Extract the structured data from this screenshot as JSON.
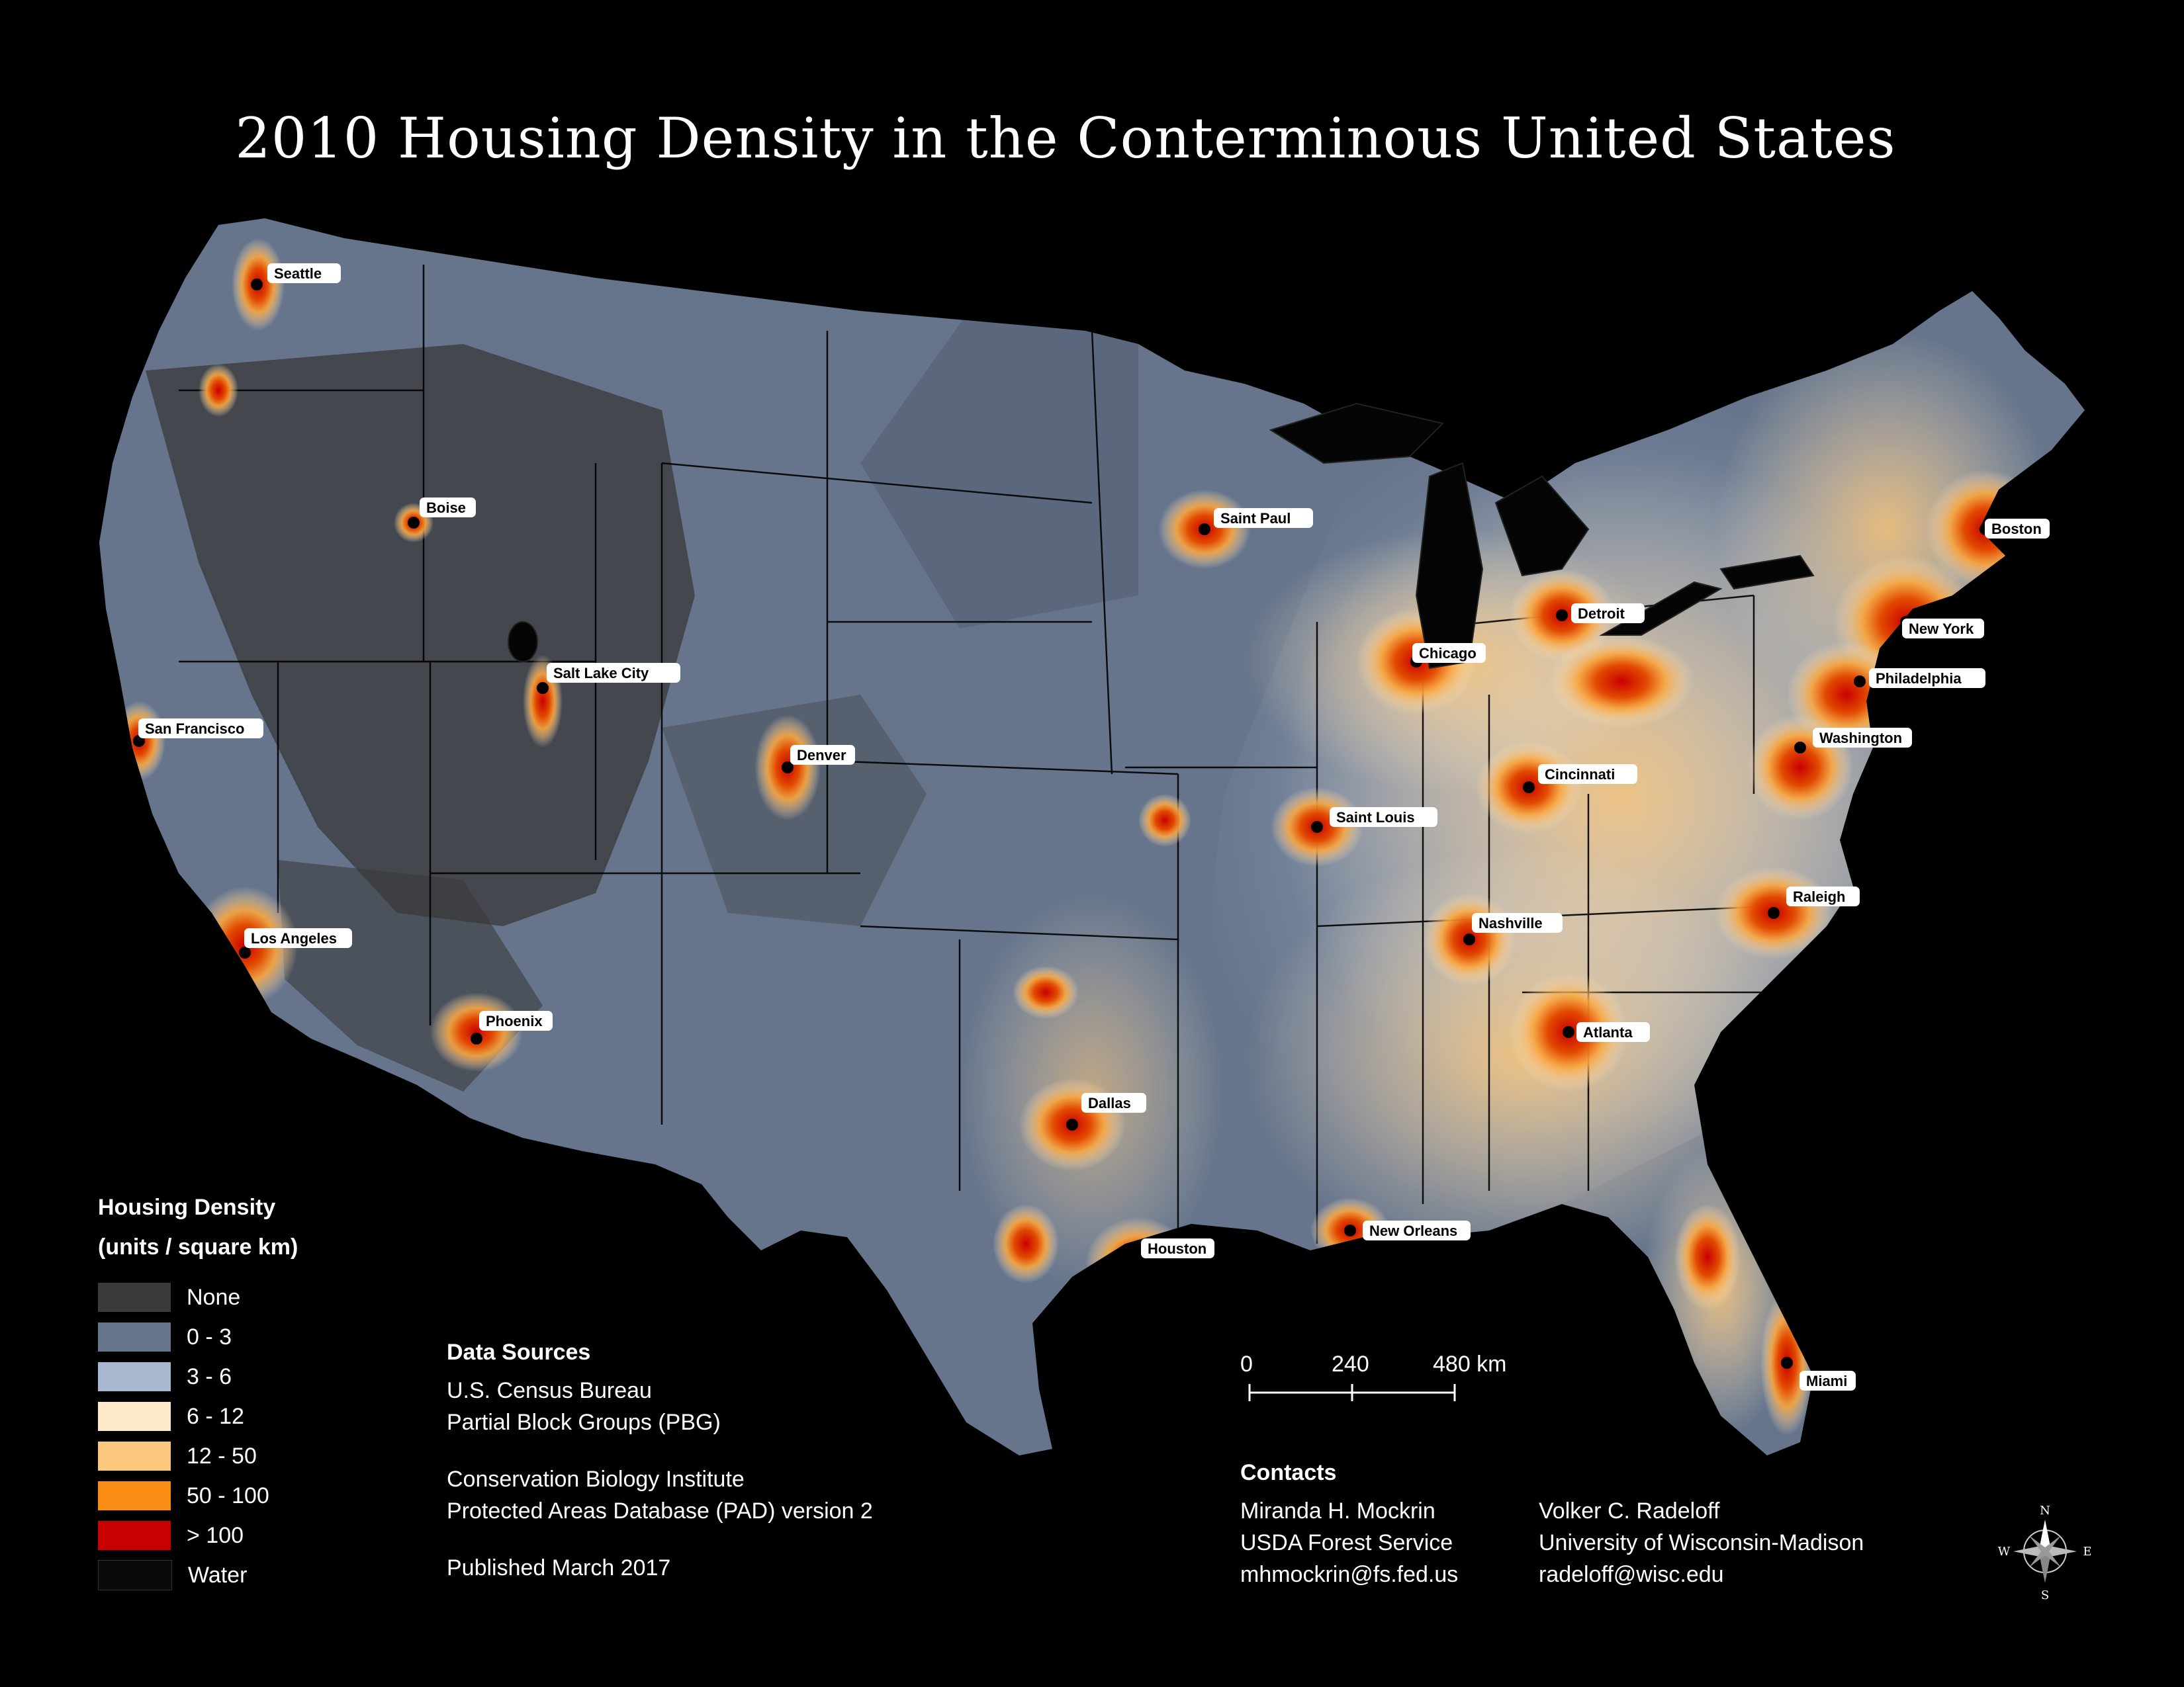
{
  "title": "2010 Housing Density in the Conterminous United States",
  "legend": {
    "title_line1": "Housing Density",
    "title_line2": "(units / square km)",
    "items": [
      {
        "label": "None",
        "color": "#3a3a3a"
      },
      {
        "label": "0 - 3",
        "color": "#66758c"
      },
      {
        "label": "3 - 6",
        "color": "#a7b7cf"
      },
      {
        "label": "6 - 12",
        "color": "#fde9c9"
      },
      {
        "label": "12 - 50",
        "color": "#fbc77c"
      },
      {
        "label": "50 - 100",
        "color": "#f98d13"
      },
      {
        "label": "> 100",
        "color": "#c90000"
      },
      {
        "label": "Water",
        "color": "#0a0a0a"
      }
    ]
  },
  "sources": {
    "heading": "Data Sources",
    "line1": "U.S. Census Bureau",
    "line2": "Partial Block Groups (PBG)",
    "line3": "Conservation Biology Institute",
    "line4": "Protected Areas Database (PAD) version 2",
    "published": "Published March 2017"
  },
  "scale": {
    "tick0": "0",
    "tick1": "240",
    "tick2": "480 km"
  },
  "contacts": {
    "heading": "Contacts",
    "person1": {
      "name": "Miranda H. Mockrin",
      "org": "USDA Forest Service",
      "email": "mhmockrin@fs.fed.us"
    },
    "person2": {
      "name": "Volker C. Radeloff",
      "org": "University of Wisconsin-Madison",
      "email": "radeloff@wisc.edu"
    }
  },
  "compass": {
    "n": "N",
    "s": "S",
    "e": "E",
    "w": "W"
  },
  "cities": [
    "Seattle",
    "Boise",
    "Saint Paul",
    "Boston",
    "Detroit",
    "Chicago",
    "New York",
    "Salt Lake City",
    "Philadelphia",
    "San Francisco",
    "Denver",
    "Washington",
    "Cincinnati",
    "Saint Louis",
    "Raleigh",
    "Nashville",
    "Los Angeles",
    "Phoenix",
    "Atlanta",
    "Dallas",
    "Houston",
    "New Orleans",
    "Miami"
  ]
}
